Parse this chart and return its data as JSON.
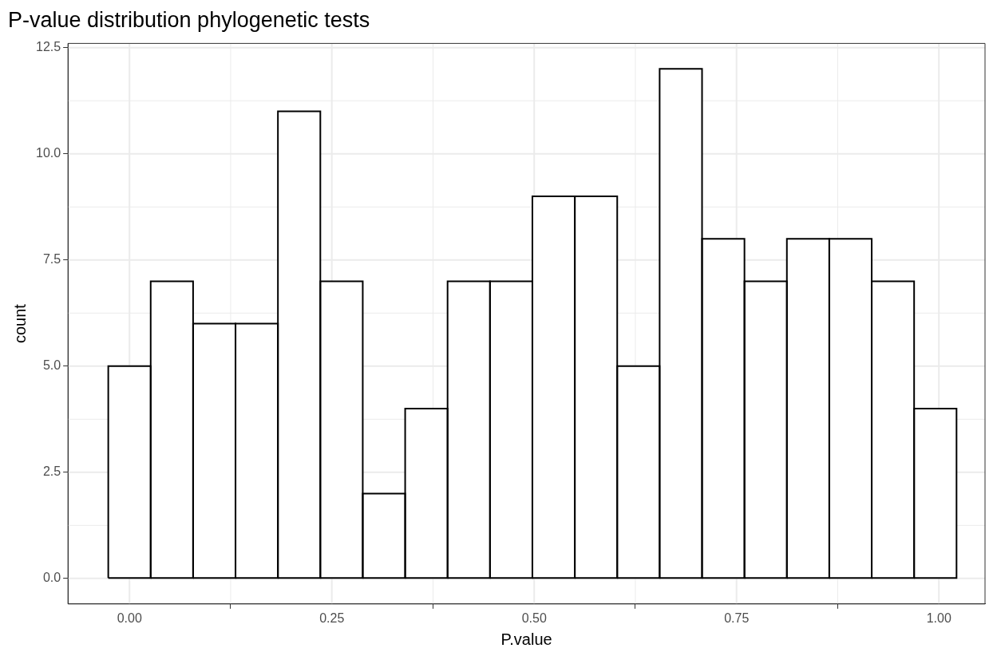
{
  "chart_data": {
    "type": "histogram",
    "title": "P-value distribution phylogenetic tests",
    "xlabel": "P.value",
    "ylabel": "count",
    "bins": [
      -0.0262,
      0.0262,
      0.0786,
      0.131,
      0.1834,
      0.2358,
      0.2882,
      0.3406,
      0.393,
      0.4454,
      0.4978,
      0.5502,
      0.6026,
      0.655,
      0.7074,
      0.7598,
      0.8122,
      0.8646,
      0.917,
      0.9694,
      1.0218
    ],
    "values": [
      5,
      7,
      6,
      6,
      11,
      7,
      2,
      4,
      7,
      7,
      9,
      9,
      5,
      12,
      8,
      7,
      8,
      8,
      7,
      4
    ],
    "color": "#ffffff",
    "xlim": [
      -0.076,
      1.057
    ],
    "xticks": [
      {
        "value": 0,
        "label": "0.00"
      },
      {
        "value": 0.25,
        "label": "0.25"
      },
      {
        "value": 0.5,
        "label": "0.50"
      },
      {
        "value": 0.75,
        "label": "0.75"
      },
      {
        "value": 1,
        "label": "1.00"
      }
    ],
    "ylim": [
      -0.6,
      12.6
    ],
    "yticks": [
      {
        "value": 0,
        "label": "0.0"
      },
      {
        "value": 2.5,
        "label": "2.5"
      },
      {
        "value": 5,
        "label": "5.0"
      },
      {
        "value": 7.5,
        "label": "7.5"
      },
      {
        "value": 10,
        "label": "10.0"
      },
      {
        "value": 12.5,
        "label": "12.5"
      }
    ],
    "grid": true
  }
}
